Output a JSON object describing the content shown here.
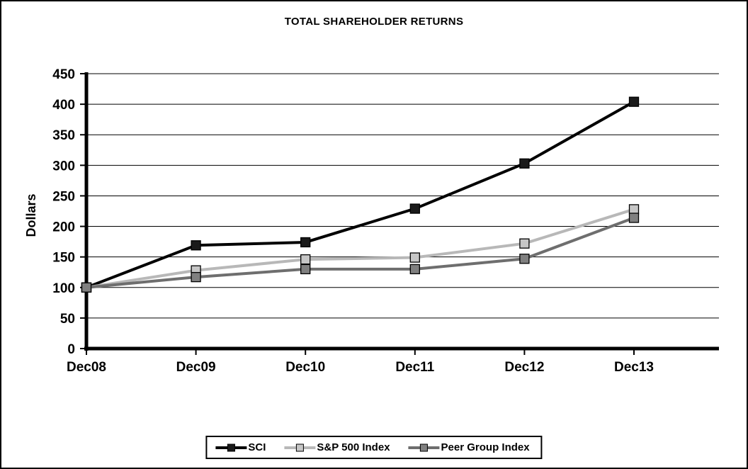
{
  "title": "TOTAL SHAREHOLDER RETURNS",
  "chart_data": {
    "type": "line",
    "x": [
      "Dec08",
      "Dec09",
      "Dec10",
      "Dec11",
      "Dec12",
      "Dec13"
    ],
    "series": [
      {
        "name": "SCI",
        "color": "#000000",
        "marker_fill": "#1a1a1a",
        "values": [
          100,
          169,
          174,
          229,
          303,
          404
        ]
      },
      {
        "name": "S&P 500 Index",
        "color": "#b8b8b8",
        "marker_fill": "#c6c6c6",
        "values": [
          100,
          128,
          146,
          149,
          172,
          228
        ]
      },
      {
        "name": "Peer Group Index",
        "color": "#6e6e6e",
        "marker_fill": "#808080",
        "values": [
          100,
          117,
          130,
          130,
          147,
          214
        ]
      }
    ],
    "ylabel": "Dollars",
    "xlabel": "",
    "ylim": [
      0,
      450
    ],
    "ytick_step": 50,
    "grid": "horizontal",
    "legend_position": "bottom"
  }
}
